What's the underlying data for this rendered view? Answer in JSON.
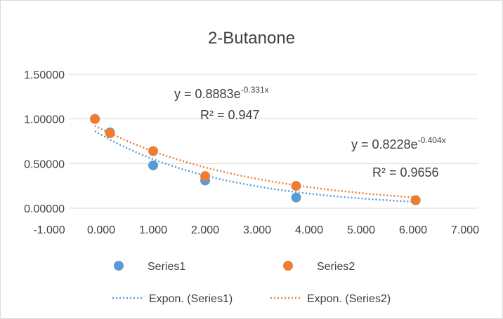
{
  "chart_data": {
    "type": "scatter",
    "title": "2-Butanone",
    "xlim": [
      -1,
      7
    ],
    "xticks": [
      {
        "value": -1,
        "label": "-1.000"
      },
      {
        "value": 0,
        "label": "0.000"
      },
      {
        "value": 1,
        "label": "1.000"
      },
      {
        "value": 2,
        "label": "2.000"
      },
      {
        "value": 3,
        "label": "3.000"
      },
      {
        "value": 4,
        "label": "4.000"
      },
      {
        "value": 5,
        "label": "5.000"
      },
      {
        "value": 6,
        "label": "6.000"
      },
      {
        "value": 7,
        "label": "7.000"
      }
    ],
    "ylim": [
      0,
      1.5
    ],
    "yticks": [
      {
        "value": 0,
        "label": "0.00000"
      },
      {
        "value": 0.5,
        "label": "0.50000"
      },
      {
        "value": 1,
        "label": "1.00000"
      },
      {
        "value": 1.5,
        "label": "1.50000"
      }
    ],
    "grid": true,
    "legend": "bottom",
    "series": [
      {
        "name": "Series1",
        "color": "#5b9bd5",
        "x": [
          -0.12,
          0.17,
          1,
          2,
          3.75,
          6.05
        ],
        "values": [
          1.0,
          0.85,
          0.48,
          0.31,
          0.12,
          0.09
        ]
      },
      {
        "name": "Series2",
        "color": "#ed7d31",
        "x": [
          -0.12,
          0.17,
          1,
          2,
          3.75,
          6.05
        ],
        "values": [
          1.0,
          0.84,
          0.64,
          0.36,
          0.25,
          0.09
        ]
      }
    ],
    "trendlines": [
      {
        "name": "Expon. (Series1)",
        "color": "#5b9bd5",
        "a": 0.8228,
        "b": -0.404,
        "equation": "y = 0.8228e",
        "exponent": "-0.404x",
        "r2": "R² = 0.9656"
      },
      {
        "name": "Expon. (Series2)",
        "color": "#ed7d31",
        "a": 0.8883,
        "b": -0.331,
        "equation": "y = 0.8883e",
        "exponent": "-0.331x",
        "r2": "R² = 0.947"
      }
    ]
  }
}
